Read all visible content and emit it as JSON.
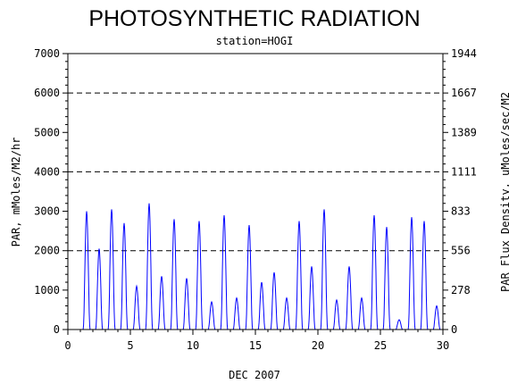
{
  "chart_data": {
    "type": "line",
    "title": "PHOTOSYNTHETIC RADIATION",
    "subtitle": "station=HOGI",
    "xlabel": "DEC 2007",
    "ylabel_left": "PAR, mMoles/M2/hr",
    "ylabel_right": "PAR Flux Density, uMoles/sec/M2",
    "xlim": [
      0,
      30
    ],
    "ylim": [
      0,
      7000
    ],
    "x_ticks": [
      "0",
      "5",
      "10",
      "15",
      "20",
      "25",
      "30"
    ],
    "y_ticks_left": [
      "0",
      "1000",
      "2000",
      "3000",
      "4000",
      "5000",
      "6000",
      "7000"
    ],
    "y_ticks_right": [
      "0",
      "278",
      "556",
      "833",
      "1111",
      "1389",
      "1667",
      "1944"
    ],
    "dashed_gridlines_y": [
      2000,
      4000,
      6000
    ],
    "line_color": "#0000ff",
    "series": [
      {
        "daily_peaks": [
          {
            "day": 1.5,
            "value": 3000
          },
          {
            "day": 2.5,
            "value": 2050
          },
          {
            "day": 3.5,
            "value": 3050
          },
          {
            "day": 4.5,
            "value": 2700
          },
          {
            "day": 5.5,
            "value": 1100
          },
          {
            "day": 6.5,
            "value": 3200
          },
          {
            "day": 7.5,
            "value": 1350
          },
          {
            "day": 8.5,
            "value": 2800
          },
          {
            "day": 9.5,
            "value": 1300
          },
          {
            "day": 10.5,
            "value": 2750
          },
          {
            "day": 11.5,
            "value": 700
          },
          {
            "day": 12.5,
            "value": 2900
          },
          {
            "day": 13.5,
            "value": 800
          },
          {
            "day": 14.5,
            "value": 2650
          },
          {
            "day": 15.5,
            "value": 1200
          },
          {
            "day": 16.5,
            "value": 1450
          },
          {
            "day": 17.5,
            "value": 800
          },
          {
            "day": 18.5,
            "value": 2750
          },
          {
            "day": 19.5,
            "value": 1600
          },
          {
            "day": 20.5,
            "value": 3050
          },
          {
            "day": 21.5,
            "value": 750
          },
          {
            "day": 22.5,
            "value": 1600
          },
          {
            "day": 23.5,
            "value": 800
          },
          {
            "day": 24.5,
            "value": 2900
          },
          {
            "day": 25.5,
            "value": 2600
          },
          {
            "day": 26.5,
            "value": 250
          },
          {
            "day": 27.5,
            "value": 2850
          },
          {
            "day": 28.5,
            "value": 2750
          },
          {
            "day": 29.5,
            "value": 600
          }
        ]
      }
    ]
  }
}
